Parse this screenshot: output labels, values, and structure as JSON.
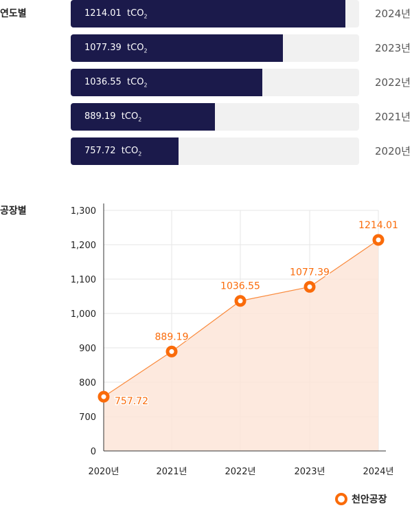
{
  "sections": {
    "by_year": "연도별",
    "by_plant": "공장별"
  },
  "unit": "tCO",
  "unit_sub": "2",
  "bars": [
    {
      "year": "2024년",
      "value": "1214.01",
      "progress": 95.2
    },
    {
      "year": "2023년",
      "value": "1077.39",
      "progress": 73.6
    },
    {
      "year": "2022년",
      "value": "1036.55",
      "progress": 66.4
    },
    {
      "year": "2021년",
      "value": "889.19",
      "progress": 50.0
    },
    {
      "year": "2020년",
      "value": "757.72",
      "progress": 37.4
    }
  ],
  "colors": {
    "navy": "#1b1a4b",
    "orange": "#fa6b0a",
    "area": "#fde5d8"
  },
  "chart_data": {
    "type": "area",
    "categories": [
      "2020년",
      "2021년",
      "2022년",
      "2023년",
      "2024년"
    ],
    "series": [
      {
        "name": "천안공장",
        "values": [
          757.72,
          889.19,
          1036.55,
          1077.39,
          1214.01
        ],
        "labels": [
          "757.72",
          "889.19",
          "1036.55",
          "1077.39",
          "1214.01"
        ]
      }
    ],
    "yticks": [
      "0",
      "700",
      "800",
      "900",
      "1,000",
      "1,100",
      "1,200",
      "1,300"
    ],
    "ytick_values": [
      0,
      700,
      800,
      900,
      1000,
      1100,
      1200,
      1300
    ],
    "ylim": [
      700,
      1300
    ],
    "axis_break": true,
    "grid": true,
    "legend": "bottom-right"
  }
}
